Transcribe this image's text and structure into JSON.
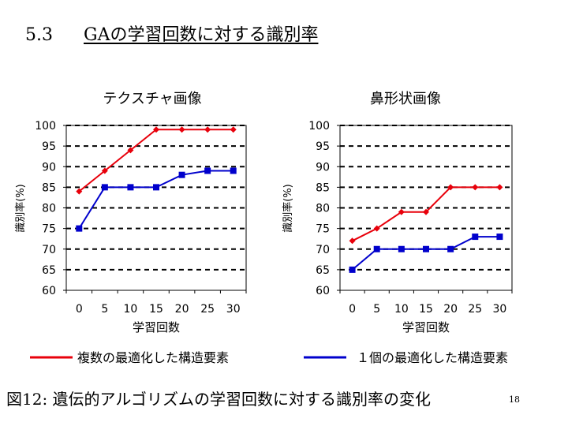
{
  "slide": {
    "section_number": "5.3",
    "title": "GAの学習回数に対する識別率",
    "caption": "図12: 遺伝的アルゴリズムの学習回数に対する識別率の変化",
    "page_number": "18"
  },
  "legend": [
    {
      "label": "複数の最適化した構造要素",
      "color": "#e8000b"
    },
    {
      "label": "１個の最適化した構造要素",
      "color": "#0000cc"
    }
  ],
  "chart_data": [
    {
      "type": "line",
      "title": "テクスチャ画像",
      "xlabel": "学習回数",
      "ylabel": "識別率(%)",
      "x": [
        0,
        5,
        10,
        15,
        20,
        25,
        30
      ],
      "ylim": [
        60,
        100
      ],
      "yticks": [
        60,
        65,
        70,
        75,
        80,
        85,
        90,
        95,
        100
      ],
      "grid": true,
      "series": [
        {
          "name": "複数の最適化した構造要素",
          "color": "#e8000b",
          "marker": "diamond",
          "values": [
            84,
            89,
            94,
            99,
            99,
            99,
            99
          ]
        },
        {
          "name": "１個の最適化した構造要素",
          "color": "#0000cc",
          "marker": "square",
          "values": [
            75,
            85,
            85,
            85,
            88,
            89,
            89
          ]
        }
      ]
    },
    {
      "type": "line",
      "title": "鼻形状画像",
      "xlabel": "学習回数",
      "ylabel": "識別率(%)",
      "x": [
        0,
        5,
        10,
        15,
        20,
        25,
        30
      ],
      "ylim": [
        60,
        100
      ],
      "yticks": [
        60,
        65,
        70,
        75,
        80,
        85,
        90,
        95,
        100
      ],
      "grid": true,
      "series": [
        {
          "name": "複数の最適化した構造要素",
          "color": "#e8000b",
          "marker": "diamond",
          "values": [
            72,
            75,
            79,
            79,
            85,
            85,
            85
          ]
        },
        {
          "name": "１個の最適化した構造要素",
          "color": "#0000cc",
          "marker": "square",
          "values": [
            65,
            70,
            70,
            70,
            70,
            73,
            73
          ]
        }
      ]
    }
  ]
}
